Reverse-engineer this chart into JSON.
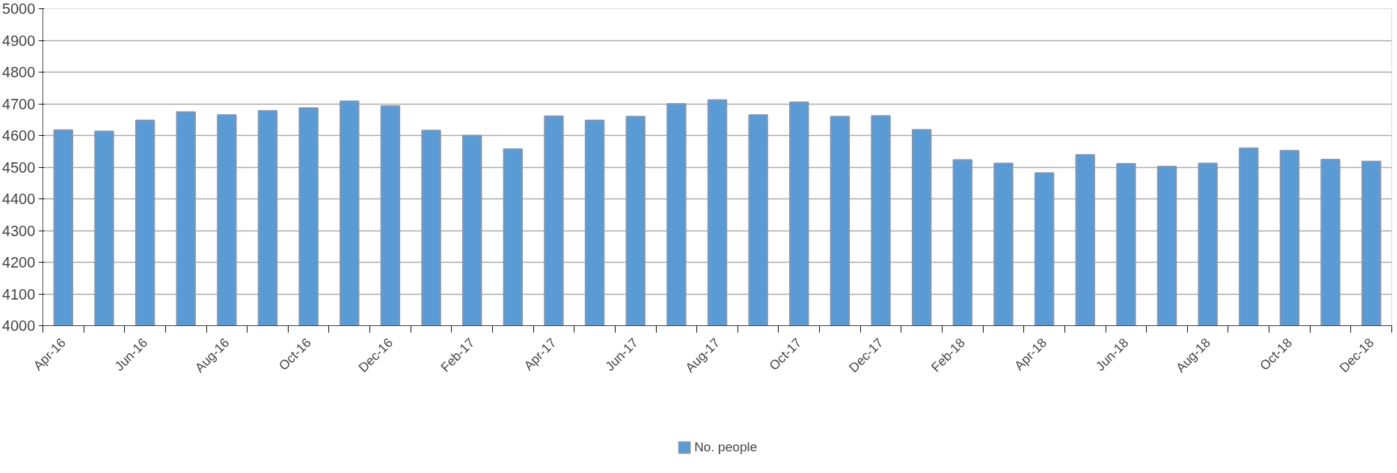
{
  "chart_data": {
    "type": "bar",
    "categories": [
      "Apr-16",
      null,
      "Jun-16",
      null,
      "Aug-16",
      null,
      "Oct-16",
      null,
      "Dec-16",
      null,
      "Feb-17",
      null,
      "Apr-17",
      null,
      "Jun-17",
      null,
      "Aug-17",
      null,
      "Oct-17",
      null,
      "Dec-17",
      null,
      "Feb-18",
      null,
      "Apr-18",
      null,
      "Jun-18",
      null,
      "Aug-18",
      null,
      "Oct-18",
      null,
      "Dec-18"
    ],
    "series": [
      {
        "name": "No. people",
        "color": "#5b9bd5",
        "values": [
          4617,
          4613,
          4648,
          4674,
          4665,
          4678,
          4687,
          4708,
          4693,
          4616,
          4600,
          4557,
          4661,
          4648,
          4660,
          4700,
          4712,
          4665,
          4705,
          4660,
          4662,
          4618,
          4523,
          4512,
          4482,
          4539,
          4511,
          4502,
          4512,
          4560,
          4552,
          4524,
          4518
        ]
      }
    ],
    "ylim": [
      4000,
      5000
    ],
    "yticks": [
      4000,
      4100,
      4200,
      4300,
      4400,
      4500,
      4600,
      4700,
      4800,
      4900,
      5000
    ],
    "grid": "y",
    "legend": "bottom"
  }
}
